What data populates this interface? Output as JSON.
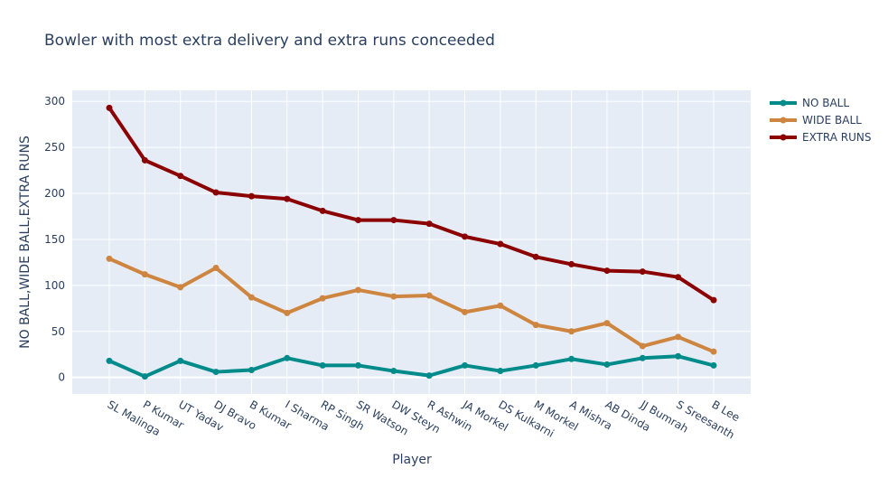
{
  "chart_data": {
    "type": "line",
    "title": "Bowler with most extra delivery and extra runs conceeded",
    "xlabel": "Player",
    "ylabel": "NO BALL,WIDE BALL,EXTRA RUNS",
    "categories": [
      "SL Malinga",
      "P Kumar",
      "UT Yadav",
      "DJ Bravo",
      "B Kumar",
      "I Sharma",
      "RP Singh",
      "SR Watson",
      "DW Steyn",
      "R Ashwin",
      "JA Morkel",
      "DS Kulkarni",
      "M Morkel",
      "A Mishra",
      "AB Dinda",
      "JJ Bumrah",
      "S Sreesanth",
      "B Lee"
    ],
    "ylim": [
      -18,
      312
    ],
    "yticks": [
      0,
      50,
      100,
      150,
      200,
      250,
      300
    ],
    "grid": true,
    "legend_position": "top-right",
    "series": [
      {
        "name": "NO BALL",
        "color": "#008b8b",
        "values": [
          18,
          1,
          18,
          6,
          8,
          21,
          13,
          13,
          7,
          2,
          13,
          7,
          13,
          20,
          14,
          21,
          23,
          13
        ]
      },
      {
        "name": "WIDE BALL",
        "color": "#cd853f",
        "values": [
          129,
          112,
          98,
          119,
          87,
          70,
          86,
          95,
          88,
          89,
          71,
          78,
          57,
          50,
          59,
          34,
          44,
          28
        ]
      },
      {
        "name": "EXTRA RUNS",
        "color": "#8b0000",
        "values": [
          293,
          236,
          219,
          201,
          197,
          194,
          181,
          171,
          171,
          167,
          153,
          145,
          131,
          123,
          116,
          115,
          109,
          84
        ]
      }
    ]
  }
}
